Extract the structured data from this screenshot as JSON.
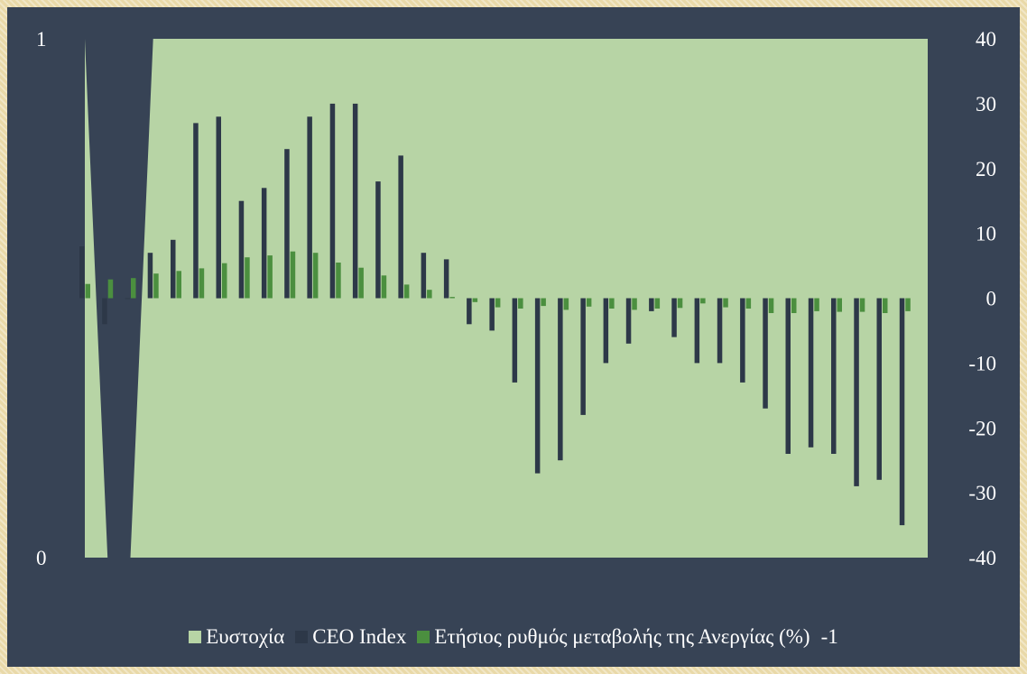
{
  "chart_data": {
    "type": "bar",
    "title": "",
    "xlabel": "",
    "ylabel": "",
    "left_axis": {
      "ylim": [
        0,
        1
      ],
      "tick_labels": [
        "0",
        "1"
      ]
    },
    "right_axis": {
      "ylim": [
        -40,
        40
      ],
      "tick_labels": [
        "-40",
        "-30",
        "-20",
        "-10",
        "0",
        "10",
        "20",
        "30",
        "40"
      ]
    },
    "grid": false,
    "legend_position": "bottom",
    "series": [
      {
        "name": "Ευστοχία",
        "type": "area",
        "axis": "left",
        "color": "#b7d4a5",
        "values": [
          1,
          0,
          0,
          1,
          1,
          1,
          1,
          1,
          1,
          1,
          1,
          1,
          1,
          1,
          1,
          1,
          1,
          1,
          1,
          1,
          1,
          1,
          1,
          1,
          1,
          1,
          1,
          1,
          1,
          1,
          1,
          1,
          1,
          1,
          1,
          1,
          1
        ]
      },
      {
        "name": "CEO Index",
        "type": "bar",
        "axis": "right",
        "color": "#2d3848",
        "values": [
          8,
          -4,
          0,
          7,
          9,
          27,
          28,
          15,
          17,
          23,
          28,
          30,
          30,
          18,
          22,
          7,
          6,
          -4,
          -5,
          -13,
          -27,
          -25,
          -18,
          -10,
          -7,
          -2,
          -6,
          -10,
          -10,
          -13,
          -17,
          -24,
          -23,
          -24,
          -29,
          -28,
          -35
        ]
      },
      {
        "name": "Ετήσιος ρυθμός μεταβολής της Ανεργίας (%)",
        "type": "bar",
        "axis": "right",
        "color": "#4b8f3f",
        "values": [
          2.2,
          2.9,
          3.1,
          3.8,
          4.2,
          4.6,
          5.4,
          6.3,
          6.6,
          7.2,
          7.0,
          5.5,
          4.7,
          3.5,
          2.1,
          1.3,
          0.2,
          -0.6,
          -1.4,
          -1.6,
          -1.2,
          -1.8,
          -1.3,
          -1.6,
          -1.8,
          -1.6,
          -1.5,
          -0.8,
          -1.4,
          -1.6,
          -2.3,
          -2.3,
          -2.0,
          -2.1,
          -2.1,
          -2.3,
          -2.0
        ]
      }
    ],
    "legend_suffix": "-1"
  },
  "style": {
    "background": "#374355",
    "text_color": "#ffffff"
  }
}
